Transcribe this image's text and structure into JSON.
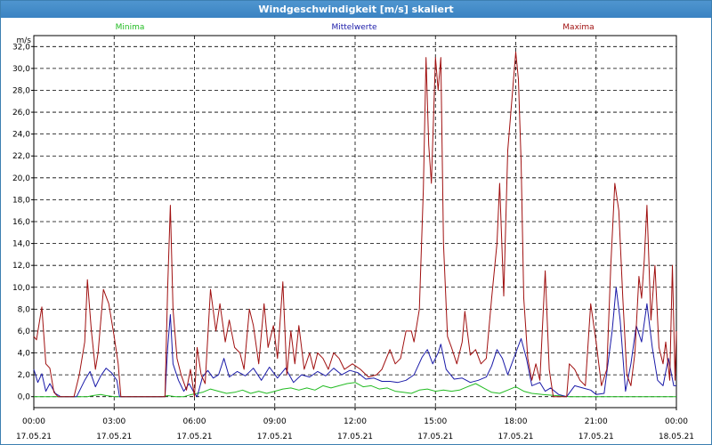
{
  "window": {
    "title": "Windgeschwindigkeit [m/s] skaliert"
  },
  "colors": {
    "minima": "#22bb22",
    "mittelwerte": "#1a1aa8",
    "maxima": "#a01010",
    "grid": "#000000",
    "titlebar": "#3a83c2"
  },
  "chart_data": {
    "type": "line",
    "title": "Windgeschwindigkeit [m/s] skaliert",
    "ylabel": "m/s",
    "xlabel": "",
    "ylim": [
      -1.0,
      33.0
    ],
    "yticks": [
      0,
      2,
      4,
      6,
      8,
      10,
      12,
      14,
      16,
      18,
      20,
      22,
      24,
      26,
      28,
      30,
      32
    ],
    "ytick_labels": [
      "0,0",
      "2,0",
      "4,0",
      "6,0",
      "8,0",
      "10,0",
      "12,0",
      "14,0",
      "16,0",
      "18,0",
      "20,0",
      "22,0",
      "24,0",
      "26,0",
      "28,0",
      "30,0",
      "32,0"
    ],
    "x_unit": "hours from 17.05.21 00:00",
    "xlim": [
      0,
      24
    ],
    "xticks": [
      0,
      3,
      6,
      9,
      12,
      15,
      18,
      21,
      24
    ],
    "xtick_time_labels": [
      "00:00",
      "03:00",
      "06:00",
      "09:00",
      "12:00",
      "15:00",
      "18:00",
      "21:00",
      "00:00"
    ],
    "xtick_date_labels": [
      "17.05.21",
      "17.05.21",
      "17.05.21",
      "17.05.21",
      "17.05.21",
      "17.05.21",
      "17.05.21",
      "17.05.21",
      "18.05.21"
    ],
    "grid": true,
    "legend_placement": "top",
    "series": [
      {
        "name": "Minima",
        "color_key": "minima",
        "points": [
          [
            0,
            0
          ],
          [
            0.2,
            0
          ],
          [
            0.5,
            0
          ],
          [
            1,
            0
          ],
          [
            1.5,
            0
          ],
          [
            2,
            0
          ],
          [
            2.2,
            0.1
          ],
          [
            2.5,
            0.2
          ],
          [
            2.7,
            0.1
          ],
          [
            3,
            0
          ],
          [
            4,
            0
          ],
          [
            4.8,
            0
          ],
          [
            5,
            0.1
          ],
          [
            5.3,
            0
          ],
          [
            5.6,
            0
          ],
          [
            5.9,
            0.2
          ],
          [
            6.1,
            0.3
          ],
          [
            6.3,
            0.4
          ],
          [
            6.6,
            0.7
          ],
          [
            6.9,
            0.5
          ],
          [
            7.2,
            0.3
          ],
          [
            7.5,
            0.4
          ],
          [
            7.8,
            0.6
          ],
          [
            8.1,
            0.3
          ],
          [
            8.4,
            0.5
          ],
          [
            8.7,
            0.3
          ],
          [
            9,
            0.5
          ],
          [
            9.3,
            0.7
          ],
          [
            9.6,
            0.8
          ],
          [
            9.9,
            0.6
          ],
          [
            10.2,
            0.8
          ],
          [
            10.5,
            0.6
          ],
          [
            10.8,
            1.0
          ],
          [
            11.1,
            0.8
          ],
          [
            11.4,
            1.0
          ],
          [
            11.7,
            1.2
          ],
          [
            12,
            1.3
          ],
          [
            12.3,
            0.9
          ],
          [
            12.6,
            1.0
          ],
          [
            12.9,
            0.7
          ],
          [
            13.2,
            0.8
          ],
          [
            13.5,
            0.5
          ],
          [
            13.8,
            0.4
          ],
          [
            14.1,
            0.3
          ],
          [
            14.4,
            0.6
          ],
          [
            14.7,
            0.7
          ],
          [
            15,
            0.5
          ],
          [
            15.3,
            0.6
          ],
          [
            15.6,
            0.5
          ],
          [
            15.9,
            0.6
          ],
          [
            16.2,
            0.9
          ],
          [
            16.5,
            1.2
          ],
          [
            16.8,
            0.8
          ],
          [
            17.1,
            0.4
          ],
          [
            17.4,
            0.3
          ],
          [
            17.7,
            0.6
          ],
          [
            18,
            0.9
          ],
          [
            18.3,
            0.5
          ],
          [
            18.6,
            0.3
          ],
          [
            19,
            0.2
          ],
          [
            19.5,
            0.1
          ],
          [
            20,
            0
          ],
          [
            20.5,
            0
          ],
          [
            21,
            0
          ],
          [
            21.5,
            0
          ],
          [
            22,
            0
          ],
          [
            22.5,
            0
          ],
          [
            23,
            0
          ],
          [
            23.5,
            0
          ],
          [
            24,
            0
          ]
        ]
      },
      {
        "name": "Mittelwerte",
        "color_key": "mittelwerte",
        "points": [
          [
            0,
            2.5
          ],
          [
            0.15,
            1.3
          ],
          [
            0.3,
            2.1
          ],
          [
            0.45,
            0.5
          ],
          [
            0.6,
            1.2
          ],
          [
            0.8,
            0.3
          ],
          [
            1,
            0
          ],
          [
            1.3,
            0
          ],
          [
            1.6,
            0
          ],
          [
            1.9,
            1.5
          ],
          [
            2.1,
            2.3
          ],
          [
            2.3,
            0.9
          ],
          [
            2.5,
            1.9
          ],
          [
            2.7,
            2.6
          ],
          [
            2.9,
            2.2
          ],
          [
            3.1,
            1.5
          ],
          [
            3.2,
            0
          ],
          [
            3.5,
            0
          ],
          [
            4,
            0
          ],
          [
            4.5,
            0
          ],
          [
            4.9,
            0
          ],
          [
            5.0,
            4.5
          ],
          [
            5.1,
            7.5
          ],
          [
            5.2,
            3.0
          ],
          [
            5.4,
            1.5
          ],
          [
            5.6,
            0.5
          ],
          [
            5.8,
            1.2
          ],
          [
            6.0,
            0.3
          ],
          [
            6.1,
            0
          ],
          [
            6.3,
            1.8
          ],
          [
            6.5,
            2.4
          ],
          [
            6.7,
            1.7
          ],
          [
            6.9,
            2.0
          ],
          [
            7.1,
            3.5
          ],
          [
            7.3,
            1.8
          ],
          [
            7.6,
            2.3
          ],
          [
            7.9,
            1.9
          ],
          [
            8.2,
            2.6
          ],
          [
            8.5,
            1.5
          ],
          [
            8.8,
            2.7
          ],
          [
            9.1,
            1.7
          ],
          [
            9.4,
            2.6
          ],
          [
            9.7,
            1.3
          ],
          [
            10.0,
            2.0
          ],
          [
            10.3,
            1.8
          ],
          [
            10.6,
            2.3
          ],
          [
            10.9,
            1.9
          ],
          [
            11.2,
            2.6
          ],
          [
            11.5,
            2.0
          ],
          [
            11.8,
            2.4
          ],
          [
            12.1,
            2.2
          ],
          [
            12.4,
            1.6
          ],
          [
            12.7,
            1.7
          ],
          [
            13.0,
            1.4
          ],
          [
            13.3,
            1.4
          ],
          [
            13.6,
            1.3
          ],
          [
            13.9,
            1.5
          ],
          [
            14.2,
            2.0
          ],
          [
            14.5,
            3.6
          ],
          [
            14.7,
            4.3
          ],
          [
            14.9,
            3.0
          ],
          [
            15.1,
            4.0
          ],
          [
            15.2,
            4.8
          ],
          [
            15.4,
            2.5
          ],
          [
            15.7,
            1.6
          ],
          [
            16.0,
            1.7
          ],
          [
            16.3,
            1.3
          ],
          [
            16.6,
            1.5
          ],
          [
            16.9,
            1.8
          ],
          [
            17.1,
            2.8
          ],
          [
            17.3,
            4.3
          ],
          [
            17.5,
            3.5
          ],
          [
            17.7,
            2.0
          ],
          [
            18.0,
            4.0
          ],
          [
            18.2,
            5.3
          ],
          [
            18.4,
            3.5
          ],
          [
            18.6,
            1.0
          ],
          [
            18.9,
            1.3
          ],
          [
            19.1,
            0.5
          ],
          [
            19.3,
            0.8
          ],
          [
            19.6,
            0.2
          ],
          [
            19.9,
            0
          ],
          [
            20.2,
            1.0
          ],
          [
            20.5,
            0.8
          ],
          [
            20.8,
            0.6
          ],
          [
            21.0,
            0.2
          ],
          [
            21.3,
            0.3
          ],
          [
            21.6,
            6.0
          ],
          [
            21.75,
            10.0
          ],
          [
            21.9,
            7.0
          ],
          [
            22.1,
            0.5
          ],
          [
            22.3,
            3.0
          ],
          [
            22.5,
            6.5
          ],
          [
            22.7,
            5.0
          ],
          [
            22.9,
            8.5
          ],
          [
            23.1,
            4.5
          ],
          [
            23.3,
            1.5
          ],
          [
            23.5,
            1.0
          ],
          [
            23.7,
            3.5
          ],
          [
            23.9,
            1.0
          ],
          [
            24.0,
            1.0
          ]
        ]
      },
      {
        "name": "Maxima",
        "color_key": "maxima",
        "points": [
          [
            0,
            5.5
          ],
          [
            0.1,
            5.2
          ],
          [
            0.3,
            8.2
          ],
          [
            0.45,
            3.0
          ],
          [
            0.6,
            2.6
          ],
          [
            0.75,
            0.4
          ],
          [
            0.9,
            0
          ],
          [
            1.2,
            0
          ],
          [
            1.5,
            0
          ],
          [
            1.7,
            2.0
          ],
          [
            1.9,
            5.0
          ],
          [
            2.0,
            10.7
          ],
          [
            2.15,
            6.0
          ],
          [
            2.3,
            2.5
          ],
          [
            2.4,
            4.0
          ],
          [
            2.6,
            9.8
          ],
          [
            2.8,
            8.5
          ],
          [
            3.0,
            5.5
          ],
          [
            3.15,
            3.0
          ],
          [
            3.25,
            0
          ],
          [
            3.6,
            0
          ],
          [
            4.0,
            0
          ],
          [
            4.5,
            0
          ],
          [
            4.9,
            0
          ],
          [
            5.0,
            10.0
          ],
          [
            5.1,
            17.5
          ],
          [
            5.2,
            8.0
          ],
          [
            5.35,
            3.5
          ],
          [
            5.5,
            2.0
          ],
          [
            5.7,
            0.6
          ],
          [
            5.85,
            2.5
          ],
          [
            6.0,
            0
          ],
          [
            6.1,
            4.5
          ],
          [
            6.25,
            2.0
          ],
          [
            6.4,
            1.2
          ],
          [
            6.6,
            9.8
          ],
          [
            6.8,
            6.0
          ],
          [
            6.95,
            8.5
          ],
          [
            7.15,
            5.0
          ],
          [
            7.3,
            7.0
          ],
          [
            7.5,
            4.5
          ],
          [
            7.7,
            4.0
          ],
          [
            7.85,
            2.5
          ],
          [
            8.05,
            8.0
          ],
          [
            8.2,
            6.5
          ],
          [
            8.4,
            3.0
          ],
          [
            8.6,
            8.5
          ],
          [
            8.75,
            4.5
          ],
          [
            8.95,
            6.5
          ],
          [
            9.1,
            3.5
          ],
          [
            9.3,
            10.5
          ],
          [
            9.45,
            2.0
          ],
          [
            9.6,
            6.0
          ],
          [
            9.75,
            3.0
          ],
          [
            9.9,
            6.5
          ],
          [
            10.1,
            2.5
          ],
          [
            10.3,
            4.0
          ],
          [
            10.45,
            2.5
          ],
          [
            10.6,
            4.0
          ],
          [
            10.8,
            3.5
          ],
          [
            11.0,
            2.5
          ],
          [
            11.2,
            4.0
          ],
          [
            11.4,
            3.5
          ],
          [
            11.6,
            2.5
          ],
          [
            11.9,
            3.0
          ],
          [
            12.2,
            2.5
          ],
          [
            12.5,
            1.8
          ],
          [
            12.8,
            2.0
          ],
          [
            13.0,
            2.5
          ],
          [
            13.3,
            4.3
          ],
          [
            13.5,
            3.0
          ],
          [
            13.7,
            3.5
          ],
          [
            13.9,
            6.0
          ],
          [
            14.1,
            6.0
          ],
          [
            14.2,
            5.0
          ],
          [
            14.4,
            8.0
          ],
          [
            14.55,
            19.0
          ],
          [
            14.65,
            31.0
          ],
          [
            14.75,
            23.0
          ],
          [
            14.85,
            19.5
          ],
          [
            15.0,
            31.0
          ],
          [
            15.1,
            28.0
          ],
          [
            15.2,
            31.0
          ],
          [
            15.3,
            14.0
          ],
          [
            15.45,
            5.5
          ],
          [
            15.6,
            4.5
          ],
          [
            15.8,
            3.0
          ],
          [
            16.0,
            5.0
          ],
          [
            16.1,
            7.8
          ],
          [
            16.3,
            3.8
          ],
          [
            16.5,
            4.3
          ],
          [
            16.7,
            3.0
          ],
          [
            16.9,
            3.5
          ],
          [
            17.1,
            9.0
          ],
          [
            17.3,
            14.0
          ],
          [
            17.4,
            19.5
          ],
          [
            17.55,
            9.2
          ],
          [
            17.7,
            22.5
          ],
          [
            17.85,
            27.0
          ],
          [
            18.0,
            31.5
          ],
          [
            18.1,
            29.0
          ],
          [
            18.2,
            21.5
          ],
          [
            18.3,
            9.0
          ],
          [
            18.45,
            3.5
          ],
          [
            18.6,
            1.5
          ],
          [
            18.75,
            3.0
          ],
          [
            18.9,
            1.5
          ],
          [
            19.1,
            11.5
          ],
          [
            19.25,
            2.5
          ],
          [
            19.4,
            0
          ],
          [
            19.6,
            0
          ],
          [
            19.9,
            0
          ],
          [
            20.0,
            3.0
          ],
          [
            20.2,
            2.5
          ],
          [
            20.4,
            1.5
          ],
          [
            20.6,
            1.0
          ],
          [
            20.8,
            8.5
          ],
          [
            21.0,
            5.0
          ],
          [
            21.2,
            1.0
          ],
          [
            21.4,
            2.5
          ],
          [
            21.55,
            12.0
          ],
          [
            21.7,
            19.5
          ],
          [
            21.85,
            17.0
          ],
          [
            22.0,
            9.0
          ],
          [
            22.15,
            2.0
          ],
          [
            22.3,
            1.0
          ],
          [
            22.45,
            4.0
          ],
          [
            22.6,
            11.0
          ],
          [
            22.7,
            9.0
          ],
          [
            22.8,
            12.5
          ],
          [
            22.9,
            17.5
          ],
          [
            23.05,
            7.0
          ],
          [
            23.2,
            12.0
          ],
          [
            23.35,
            4.5
          ],
          [
            23.5,
            3.0
          ],
          [
            23.6,
            5.0
          ],
          [
            23.75,
            1.5
          ],
          [
            23.85,
            12.0
          ],
          [
            23.95,
            1.5
          ],
          [
            24.0,
            6.0
          ]
        ]
      }
    ]
  }
}
